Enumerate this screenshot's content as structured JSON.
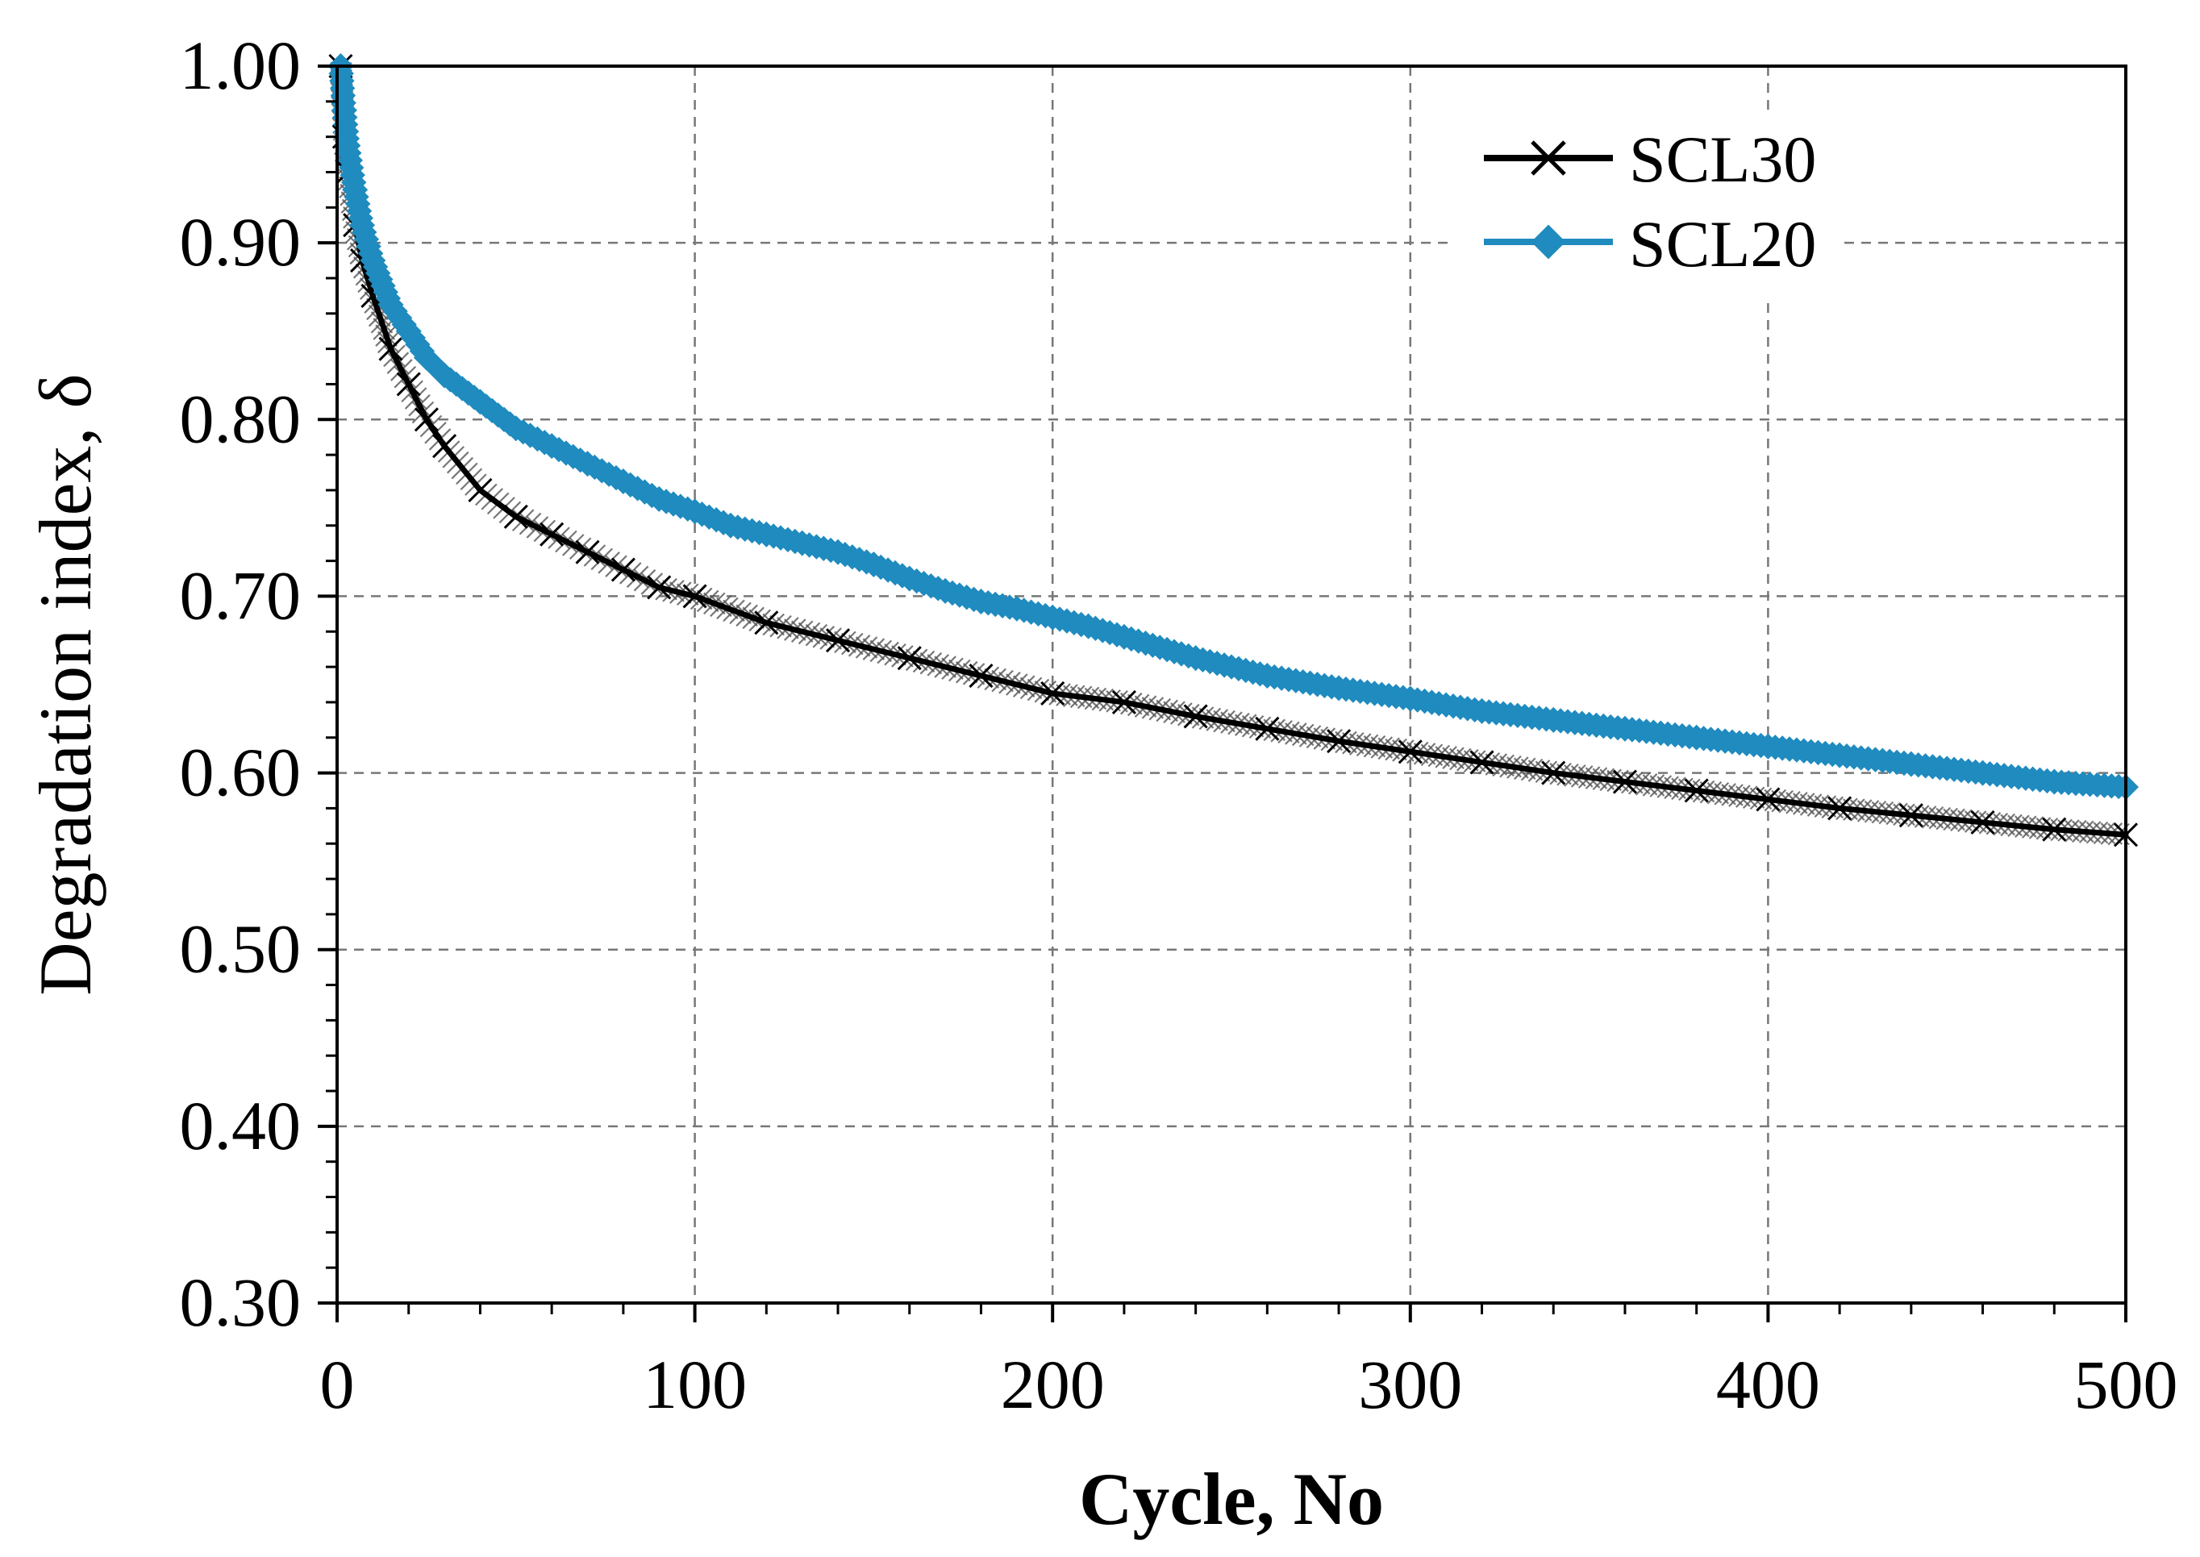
{
  "chart_data": {
    "type": "line",
    "title": "",
    "xlabel": "Cycle, No",
    "ylabel": "Degradation index, δ",
    "xlim": [
      0,
      500
    ],
    "ylim": [
      0.3,
      1.0
    ],
    "x_ticks": [
      0,
      100,
      200,
      300,
      400,
      500
    ],
    "x_tick_labels": [
      "0",
      "100",
      "200",
      "300",
      "400",
      "500"
    ],
    "y_ticks": [
      0.3,
      0.4,
      0.5,
      0.6,
      0.7,
      0.8,
      0.9,
      1.0
    ],
    "y_tick_labels": [
      "0.30",
      "0.40",
      "0.50",
      "0.60",
      "0.70",
      "0.80",
      "0.90",
      "1.00"
    ],
    "grid": true,
    "legend_position": "top-right",
    "series": [
      {
        "name": "SCL30",
        "color": "#000000",
        "marker": "x",
        "x": [
          1,
          2,
          3,
          5,
          7,
          10,
          15,
          20,
          25,
          30,
          40,
          50,
          60,
          70,
          80,
          90,
          100,
          120,
          140,
          160,
          180,
          200,
          220,
          240,
          260,
          280,
          300,
          320,
          340,
          360,
          380,
          400,
          420,
          440,
          460,
          480,
          500
        ],
        "y": [
          1.0,
          0.96,
          0.94,
          0.91,
          0.89,
          0.87,
          0.84,
          0.82,
          0.8,
          0.785,
          0.76,
          0.745,
          0.735,
          0.725,
          0.715,
          0.705,
          0.7,
          0.685,
          0.675,
          0.665,
          0.655,
          0.645,
          0.64,
          0.632,
          0.625,
          0.618,
          0.612,
          0.606,
          0.6,
          0.595,
          0.59,
          0.585,
          0.58,
          0.576,
          0.572,
          0.568,
          0.565
        ]
      },
      {
        "name": "SCL20",
        "color": "#1f8bbf",
        "marker": "diamond",
        "x": [
          1,
          2,
          3,
          5,
          7,
          10,
          15,
          20,
          25,
          30,
          40,
          50,
          60,
          70,
          80,
          90,
          100,
          110,
          120,
          130,
          140,
          150,
          160,
          170,
          180,
          190,
          200,
          210,
          220,
          240,
          260,
          280,
          300,
          320,
          340,
          360,
          380,
          400,
          420,
          440,
          460,
          480,
          500
        ],
        "y": [
          1.0,
          0.975,
          0.955,
          0.93,
          0.91,
          0.89,
          0.865,
          0.85,
          0.835,
          0.825,
          0.81,
          0.795,
          0.785,
          0.775,
          0.765,
          0.755,
          0.748,
          0.74,
          0.735,
          0.73,
          0.725,
          0.718,
          0.71,
          0.703,
          0.697,
          0.693,
          0.688,
          0.683,
          0.677,
          0.665,
          0.655,
          0.648,
          0.642,
          0.635,
          0.63,
          0.625,
          0.62,
          0.615,
          0.61,
          0.605,
          0.6,
          0.595,
          0.592
        ]
      }
    ]
  }
}
